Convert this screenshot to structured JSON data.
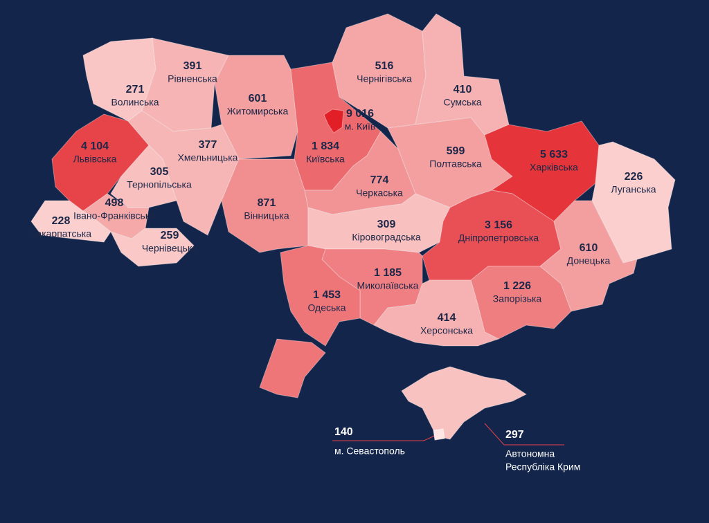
{
  "regions": [
    {
      "name": "Волинська",
      "value": 271
    },
    {
      "name": "Рівненська",
      "value": 391
    },
    {
      "name": "Житомирська",
      "value": 601
    },
    {
      "name": "Київська",
      "value": 1834,
      "value_label": "1 834"
    },
    {
      "name": "м. Київ",
      "value": 9016,
      "value_label": "9 016"
    },
    {
      "name": "Чернігівська",
      "value": 516
    },
    {
      "name": "Сумська",
      "value": 410
    },
    {
      "name": "Львівська",
      "value": 4104,
      "value_label": "4 104"
    },
    {
      "name": "Хмельницька",
      "value": 377
    },
    {
      "name": "Тернопільська",
      "value": 305
    },
    {
      "name": "Івано-Франківська",
      "value": 498
    },
    {
      "name": "Закарпатська",
      "value": 228
    },
    {
      "name": "Чернівецька",
      "value": 259
    },
    {
      "name": "Вінницька",
      "value": 871
    },
    {
      "name": "Черкаська",
      "value": 774
    },
    {
      "name": "Полтавська",
      "value": 599
    },
    {
      "name": "Харківська",
      "value": 5633,
      "value_label": "5 633"
    },
    {
      "name": "Луганська",
      "value": 226
    },
    {
      "name": "Кіровоградська",
      "value": 309
    },
    {
      "name": "Дніпропетровська",
      "value": 3156,
      "value_label": "3 156"
    },
    {
      "name": "Донецька",
      "value": 610
    },
    {
      "name": "Миколаївська",
      "value": 1185,
      "value_label": "1 185"
    },
    {
      "name": "Одеська",
      "value": 1453,
      "value_label": "1 453"
    },
    {
      "name": "Запорізька",
      "value": 1226,
      "value_label": "1 226"
    },
    {
      "name": "Херсонська",
      "value": 414
    }
  ],
  "callouts": [
    {
      "name_lines": [
        "м. Севастополь"
      ],
      "value": 140
    },
    {
      "name_lines": [
        "Автономна",
        "Республіка Крим"
      ],
      "value": 297
    }
  ]
}
